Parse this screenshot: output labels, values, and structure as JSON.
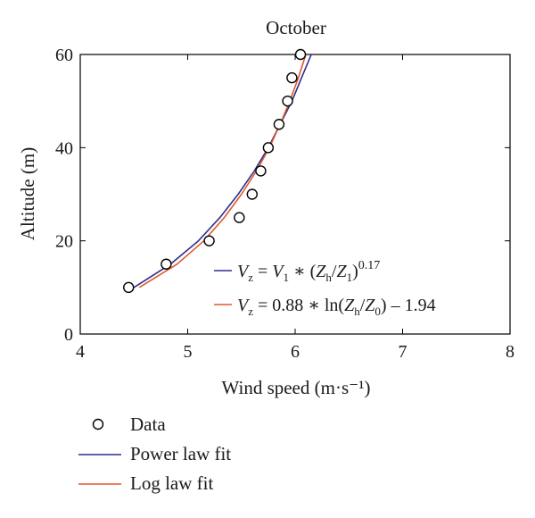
{
  "chart_data": {
    "type": "line",
    "title": "October",
    "xlabel": "Wind speed (m·s⁻¹)",
    "ylabel": "Altitude (m)",
    "xlim": [
      4,
      8
    ],
    "ylim": [
      0,
      60
    ],
    "xticks": [
      "4",
      "5",
      "6",
      "7",
      "8"
    ],
    "yticks": [
      "0",
      "20",
      "40",
      "60"
    ],
    "grid": false,
    "legend_position": "below",
    "series": [
      {
        "name": "Data",
        "kind": "scatter",
        "marker": "open-circle",
        "color": "#000000",
        "points": [
          [
            4.45,
            10
          ],
          [
            4.8,
            15
          ],
          [
            5.2,
            20
          ],
          [
            5.48,
            25
          ],
          [
            5.6,
            30
          ],
          [
            5.68,
            35
          ],
          [
            5.75,
            40
          ],
          [
            5.85,
            45
          ],
          [
            5.93,
            50
          ],
          [
            5.97,
            55
          ],
          [
            6.05,
            60
          ]
        ]
      },
      {
        "name": "Power law fit",
        "kind": "line",
        "color": "#2b2f8f",
        "points": [
          [
            4.5,
            10
          ],
          [
            4.84,
            15
          ],
          [
            5.1,
            20
          ],
          [
            5.3,
            25
          ],
          [
            5.47,
            30
          ],
          [
            5.62,
            35
          ],
          [
            5.75,
            40
          ],
          [
            5.86,
            45
          ],
          [
            5.97,
            50
          ],
          [
            6.06,
            55
          ],
          [
            6.15,
            60
          ]
        ]
      },
      {
        "name": "Log law fit",
        "kind": "line",
        "color": "#e0592a",
        "points": [
          [
            4.55,
            10
          ],
          [
            4.9,
            15
          ],
          [
            5.15,
            20
          ],
          [
            5.34,
            25
          ],
          [
            5.5,
            30
          ],
          [
            5.64,
            35
          ],
          [
            5.76,
            40
          ],
          [
            5.86,
            45
          ],
          [
            5.95,
            50
          ],
          [
            6.03,
            55
          ],
          [
            6.1,
            60
          ]
        ]
      }
    ],
    "annotations": [
      {
        "series": "Power law fit",
        "parts": [
          "V",
          "z",
          " = ",
          "V",
          "1",
          " ∗ (",
          "Z",
          "h",
          "/",
          "Z",
          "1",
          ")",
          "0.17"
        ]
      },
      {
        "series": "Log law fit",
        "parts": [
          "V",
          "z",
          " = 0.88 ∗ ln(",
          "Z",
          "h",
          "/",
          "Z",
          "0",
          ") – 1.94"
        ]
      }
    ]
  }
}
